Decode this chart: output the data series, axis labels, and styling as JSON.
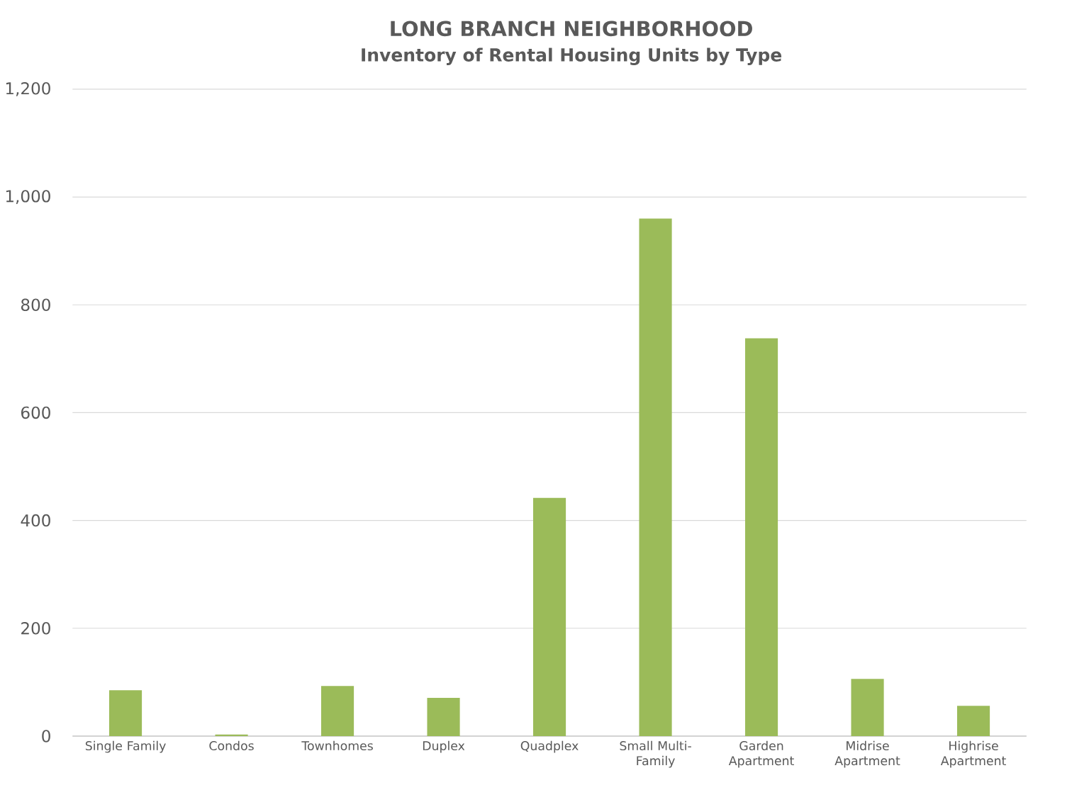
{
  "chart_data": {
    "type": "bar",
    "title": "LONG BRANCH NEIGHBORHOOD",
    "subtitle": "Inventory of Rental Housing Units by Type",
    "categories": [
      "Single Family",
      "Condos",
      "Townhomes",
      "Duplex",
      "Quadplex",
      "Small Multi-Family",
      "Garden Apartment",
      "Midrise Apartment",
      "Highrise Apartment"
    ],
    "values": [
      85,
      3,
      93,
      71,
      442,
      960,
      738,
      106,
      56
    ],
    "color": "#9bbb59",
    "ylim": [
      0,
      1200
    ],
    "yticks": [
      0,
      200,
      400,
      600,
      800,
      {
        "value": 1000,
        "label": "1,000"
      },
      {
        "value": 1200,
        "label": "1,200"
      }
    ],
    "grid": "y"
  }
}
